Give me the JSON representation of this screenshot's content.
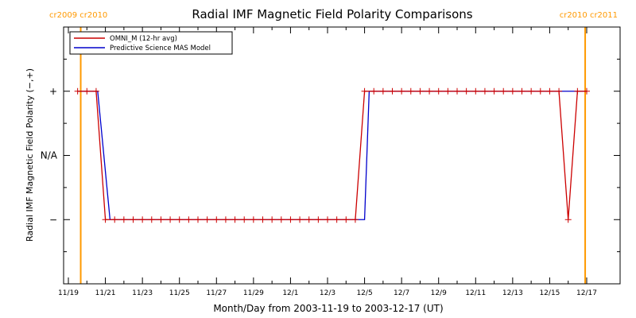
{
  "chart_data": {
    "type": "line",
    "title": "Radial IMF Magnetic Field Polarity Comparisons",
    "ylabel": "Radial IMF Magnetic Field Polarity (−,+)",
    "xlabel": "Month/Day from 2003-11-19 to 2003-12-17 (UT)",
    "x_range": [
      "2003-11-19",
      "2003-12-17"
    ],
    "y_ticks": [
      {
        "label": "+",
        "value": 1
      },
      {
        "label": "N/A",
        "value": 0
      },
      {
        "label": "−",
        "value": -1
      }
    ],
    "ylim": [
      -2,
      2
    ],
    "x_ticks": [
      "11/19",
      "11/21",
      "11/23",
      "11/25",
      "11/27",
      "11/29",
      "12/1",
      "12/3",
      "12/5",
      "12/7",
      "12/9",
      "12/11",
      "12/13",
      "12/15",
      "12/17"
    ],
    "x_tick_dates": [
      "2003-11-19",
      "2003-11-21",
      "2003-11-23",
      "2003-11-25",
      "2003-11-27",
      "2003-11-29",
      "2003-12-01",
      "2003-12-03",
      "2003-12-05",
      "2003-12-07",
      "2003-12-09",
      "2003-12-11",
      "2003-12-13",
      "2003-12-15",
      "2003-12-17"
    ],
    "carrington_markers": [
      {
        "label": "cr2009 cr2010",
        "date": "2003-11-19T16:00",
        "label_position": "left"
      },
      {
        "label": "cr2010 cr2011",
        "date": "2003-12-16T22:00",
        "label_position": "right"
      }
    ],
    "series": [
      {
        "name": "OMNI_M (12-hr avg)",
        "color": "#cc0000",
        "marker": "+",
        "points": [
          {
            "x": "2003-11-19T12:00",
            "y": 1
          },
          {
            "x": "2003-11-20T00:00",
            "y": 1
          },
          {
            "x": "2003-11-20T12:00",
            "y": 1
          },
          {
            "x": "2003-11-21T00:00",
            "y": -1
          },
          {
            "x": "2003-11-21T12:00",
            "y": -1
          },
          {
            "x": "2003-12-04T12:00",
            "y": -1
          },
          {
            "x": "2003-12-05T00:00",
            "y": 1
          },
          {
            "x": "2003-12-15T12:00",
            "y": 1
          },
          {
            "x": "2003-12-16T00:00",
            "y": -1
          },
          {
            "x": "2003-12-16T12:00",
            "y": 1
          },
          {
            "x": "2003-12-17T00:00",
            "y": 1
          }
        ]
      },
      {
        "name": "Predictive Science MAS Model",
        "color": "#0000cc",
        "points": [
          {
            "x": "2003-11-19T12:00",
            "y": 1
          },
          {
            "x": "2003-11-20T14:00",
            "y": 1
          },
          {
            "x": "2003-11-21T06:00",
            "y": -1
          },
          {
            "x": "2003-12-05T00:00",
            "y": -1
          },
          {
            "x": "2003-12-05T06:00",
            "y": 1
          },
          {
            "x": "2003-12-17T00:00",
            "y": 1
          }
        ]
      }
    ],
    "legend_position": "top-left",
    "colors": {
      "carrington": "#ff9900",
      "axes": "#000000"
    }
  }
}
